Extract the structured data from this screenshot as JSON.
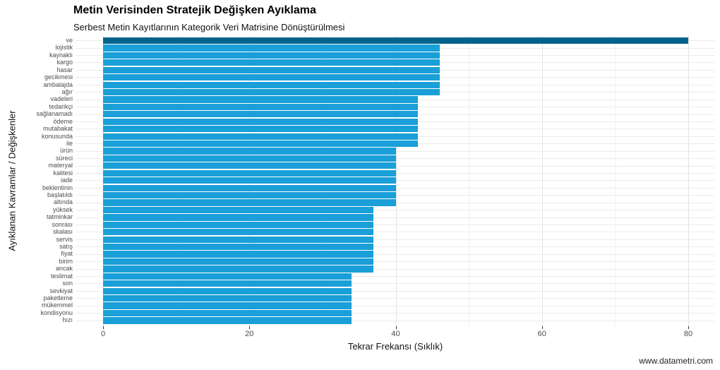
{
  "page": {
    "watermark": "www.datametri.com"
  },
  "chart_data": {
    "type": "bar",
    "orientation": "horizontal",
    "title": "Metin Verisinden Stratejik Değişken Ayıklama",
    "subtitle": "Serbest Metin Kayıtlarının Kategorik Veri Matrisine Dönüştürülmesi",
    "xlabel": "Tekrar Frekansı (Sıklık)",
    "ylabel": "Ayıklanan Kavramlar / Değişkenler",
    "xlim": [
      0,
      80
    ],
    "x_ticks": [
      0,
      20,
      40,
      60,
      80
    ],
    "x_minor_gridlines": [
      10,
      30,
      50,
      70
    ],
    "grid": true,
    "legend": false,
    "categories": [
      "ve",
      "lojistik",
      "kaynaklı",
      "kargo",
      "hasar",
      "gecikmesi",
      "ambalajda",
      "ağır",
      "vadeleri",
      "tedarikçi",
      "sağlanamadı",
      "ödeme",
      "mutabakat",
      "konusunda",
      "ile",
      "ürün",
      "süreci",
      "materyal",
      "kalitesi",
      "iade",
      "beklentinin",
      "başlatıldı",
      "altında",
      "yüksek",
      "tatminkar",
      "sonrası",
      "skalası",
      "servis",
      "satış",
      "fiyat",
      "birim",
      "ancak",
      "teslimat",
      "son",
      "sevkiyat",
      "paketleme",
      "mükemmel",
      "kondisyonu",
      "hızı"
    ],
    "values": [
      80,
      46,
      46,
      46,
      46,
      46,
      46,
      46,
      43,
      43,
      43,
      43,
      43,
      43,
      43,
      40,
      40,
      40,
      40,
      40,
      40,
      40,
      40,
      37,
      37,
      37,
      37,
      37,
      37,
      37,
      37,
      37,
      34,
      34,
      34,
      34,
      34,
      34,
      34
    ],
    "highlight_category": "ve",
    "colors": {
      "bar": "#1a9fd8",
      "highlight_bar": "#00638c",
      "gridline_major": "#e2e2e2",
      "gridline_minor": "#f1f1f1",
      "axis_text": "#4d4d4d"
    }
  }
}
